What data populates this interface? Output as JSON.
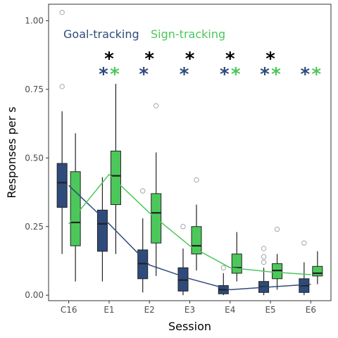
{
  "chart_data": {
    "type": "box",
    "xlabel": "Session",
    "ylabel": "Responses per s",
    "categories": [
      "C16",
      "E1",
      "E2",
      "E3",
      "E4",
      "E5",
      "E6"
    ],
    "ylim": [
      -0.02,
      1.06
    ],
    "yticks": [
      0.0,
      0.25,
      0.5,
      0.75,
      1.0
    ],
    "ytick_labels": [
      "0.00",
      "0.25",
      "0.50",
      "0.75",
      "1.00"
    ],
    "legend": {
      "position": "top-left",
      "inside": true
    },
    "grid": false,
    "series": [
      {
        "name": "Goal-tracking",
        "color": "#2f4b7c",
        "line_values": [
          0.4,
          0.26,
          0.11,
          0.06,
          0.02,
          0.03,
          0.04
        ],
        "boxes": [
          {
            "min": 0.15,
            "q1": 0.32,
            "median": 0.41,
            "q3": 0.48,
            "max": 0.67,
            "outliers": [
              0.76,
              1.03
            ]
          },
          {
            "min": 0.05,
            "q1": 0.16,
            "median": 0.26,
            "q3": 0.31,
            "max": 0.43,
            "outliers": []
          },
          {
            "min": 0.01,
            "q1": 0.06,
            "median": 0.115,
            "q3": 0.165,
            "max": 0.28,
            "outliers": [
              0.38
            ]
          },
          {
            "min": 0.0,
            "q1": 0.015,
            "median": 0.055,
            "q3": 0.1,
            "max": 0.17,
            "outliers": [
              0.25
            ]
          },
          {
            "min": 0.0,
            "q1": 0.005,
            "median": 0.02,
            "q3": 0.035,
            "max": 0.08,
            "outliers": [
              0.1
            ]
          },
          {
            "min": 0.0,
            "q1": 0.01,
            "median": 0.03,
            "q3": 0.05,
            "max": 0.1,
            "outliers": [
              0.12,
              0.14,
              0.17
            ]
          },
          {
            "min": 0.0,
            "q1": 0.01,
            "median": 0.035,
            "q3": 0.06,
            "max": 0.12,
            "outliers": [
              0.19
            ]
          }
        ]
      },
      {
        "name": "Sign-tracking",
        "color": "#4cc85a",
        "line_values": [
          0.26,
          0.44,
          0.3,
          0.18,
          0.1,
          0.085,
          0.075
        ],
        "boxes": [
          {
            "min": 0.05,
            "q1": 0.18,
            "median": 0.265,
            "q3": 0.45,
            "max": 0.59,
            "outliers": []
          },
          {
            "min": 0.15,
            "q1": 0.33,
            "median": 0.435,
            "q3": 0.525,
            "max": 0.77,
            "outliers": []
          },
          {
            "min": 0.07,
            "q1": 0.19,
            "median": 0.3,
            "q3": 0.37,
            "max": 0.52,
            "outliers": [
              0.69
            ]
          },
          {
            "min": 0.09,
            "q1": 0.15,
            "median": 0.18,
            "q3": 0.25,
            "max": 0.33,
            "outliers": [
              0.42
            ]
          },
          {
            "min": 0.05,
            "q1": 0.08,
            "median": 0.1,
            "q3": 0.15,
            "max": 0.23,
            "outliers": []
          },
          {
            "min": 0.02,
            "q1": 0.06,
            "median": 0.09,
            "q3": 0.115,
            "max": 0.15,
            "outliers": [
              0.24
            ]
          },
          {
            "min": 0.04,
            "q1": 0.07,
            "median": 0.08,
            "q3": 0.105,
            "max": 0.16,
            "outliers": []
          }
        ]
      }
    ],
    "significance": [
      {
        "category": "E1",
        "between": true,
        "gt": true,
        "st": true
      },
      {
        "category": "E2",
        "between": true,
        "gt": true,
        "st": false
      },
      {
        "category": "E3",
        "between": true,
        "gt": true,
        "st": false
      },
      {
        "category": "E4",
        "between": true,
        "gt": true,
        "st": true
      },
      {
        "category": "E5",
        "between": true,
        "gt": true,
        "st": true
      },
      {
        "category": "E6",
        "between": false,
        "gt": true,
        "st": true
      }
    ],
    "star_symbol": "*",
    "star_between_color": "#000000"
  }
}
